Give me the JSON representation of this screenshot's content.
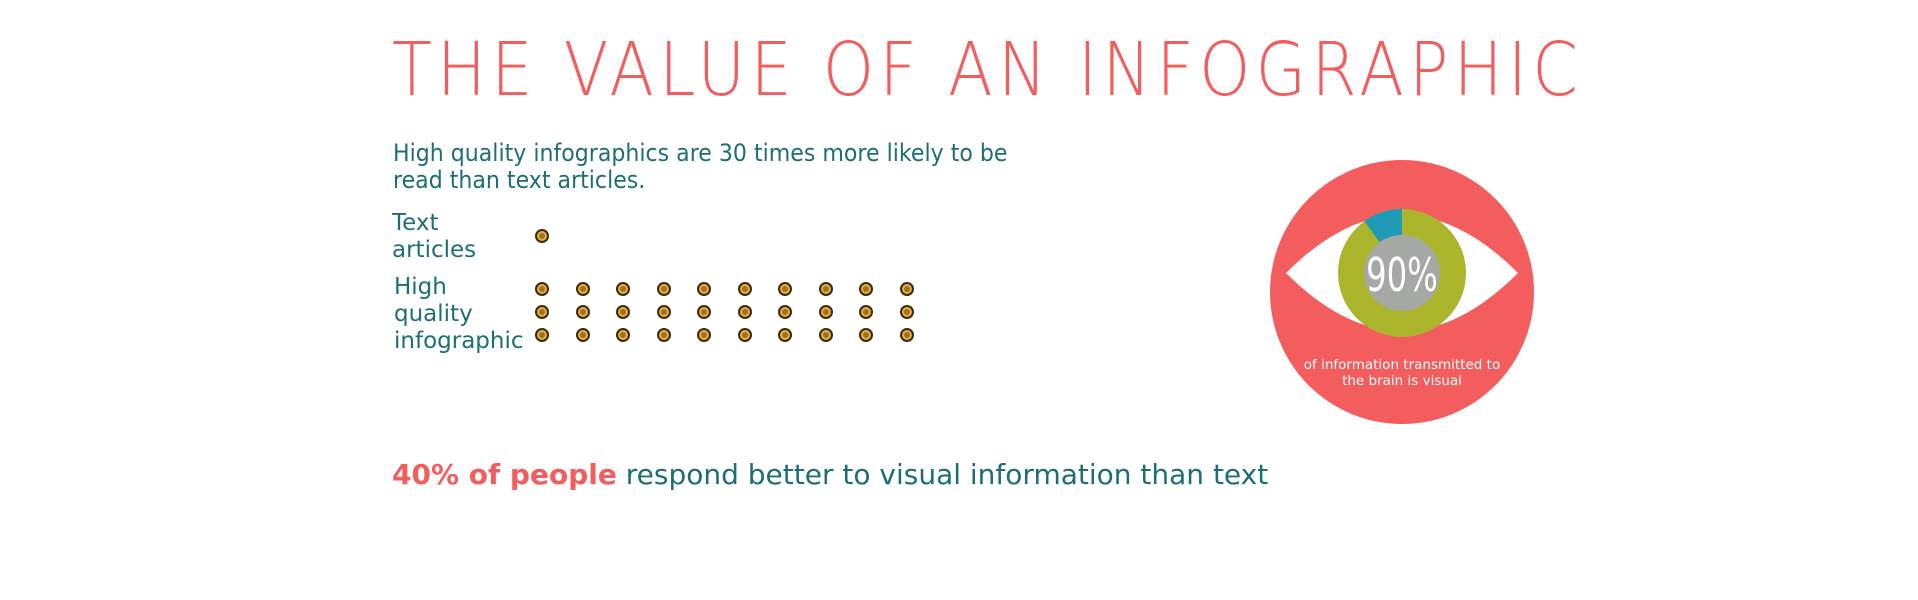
{
  "title": "THE VALUE OF AN INFOGRAPHIC",
  "intro_text": "High quality infographics are 30 times more likely to be read than text articles.",
  "comparison": {
    "rows": [
      {
        "label": "Text articles",
        "count": 1
      },
      {
        "label": "High quality infographic",
        "count": 30
      }
    ]
  },
  "eye_stat": {
    "percent_label": "90%",
    "fraction": 0.9,
    "caption": "of information transmitted to the brain is visual"
  },
  "bottom_stat": {
    "highlight": "40% of people",
    "rest": " respond better to visual information than text"
  },
  "colors": {
    "coral": "#f45d5d",
    "teal": "#1e6f73",
    "olive": "#aab52b",
    "blue": "#1f9bb7",
    "gray": "#a6a8a6",
    "dot_fill": "#f0ad3c",
    "dot_outline": "#3a2d10"
  }
}
